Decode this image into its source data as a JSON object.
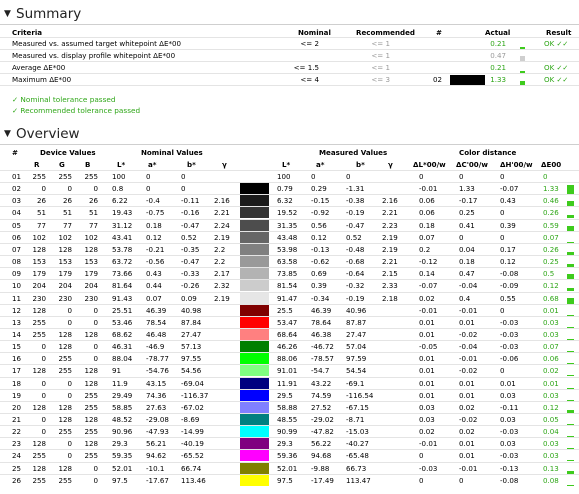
{
  "summary": {
    "title": "Summary",
    "headers": {
      "criteria": "Criteria",
      "nominal": "Nominal",
      "recommended": "Recommended",
      "hash": "#",
      "actual": "Actual",
      "result": "Result"
    },
    "rows": [
      {
        "criteria": "Measured vs. assumed target whitepoint ΔE*00",
        "nominal": "<= 2",
        "recommended": "<= 1",
        "num": "",
        "swatch": "",
        "actual": "0.21",
        "actual_fraction": 0.105,
        "result": "OK ✓✓"
      },
      {
        "criteria": "Measured vs. display profile whitepoint ΔE*00",
        "nominal": "",
        "recommended": "<= 1",
        "num": "",
        "swatch": "",
        "actual": "0.47",
        "actual_fraction": 0.47,
        "result": ""
      },
      {
        "criteria": "Average ΔE*00",
        "nominal": "<= 1.5",
        "recommended": "<= 1",
        "num": "",
        "swatch": "",
        "actual": "0.21",
        "actual_fraction": 0.14,
        "result": "OK ✓✓"
      },
      {
        "criteria": "Maximum ΔE*00",
        "nominal": "<= 4",
        "recommended": "<= 3",
        "num": "02",
        "swatch": "#000000",
        "actual": "1.33",
        "actual_fraction": 0.33,
        "result": "OK ✓✓"
      }
    ],
    "passed": [
      "✓ Nominal tolerance passed",
      "✓ Recommended tolerance passed"
    ]
  },
  "overview": {
    "title": "Overview",
    "group_headers": {
      "device": "Device Values",
      "nominal": "Nominal Values",
      "measured": "Measured Values",
      "distance": "Color distance"
    },
    "col_headers": {
      "num": "#",
      "R": "R",
      "G": "G",
      "B": "B",
      "L": "L*",
      "a": "a*",
      "b": "b*",
      "gamma": "γ",
      "mL": "L*",
      "ma": "a*",
      "mb": "b*",
      "mgamma": "γ",
      "dL": "ΔL*00/w",
      "dC": "ΔC'00/w",
      "dH": "ΔH'00/w",
      "dE": "ΔE00"
    },
    "rows": [
      {
        "n": "01",
        "R": "255",
        "G": "255",
        "B": "255",
        "L": "100",
        "a": "0",
        "b": "0",
        "g": "",
        "nom": "#ffffff",
        "meas": "#ffffff",
        "mL": "100",
        "ma": "0",
        "mb": "0",
        "mg": "",
        "dL": "0",
        "dC": "0",
        "dH": "0",
        "dE": "0",
        "dEv": 0
      },
      {
        "n": "02",
        "R": "0",
        "G": "0",
        "B": "0",
        "L": "0.8",
        "a": "0",
        "b": "0",
        "g": "",
        "nom": "#000000",
        "meas": "#000000",
        "mL": "0.79",
        "ma": "0.29",
        "mb": "-1.31",
        "mg": "",
        "dL": "-0.01",
        "dC": "1.33",
        "dH": "-0.07",
        "dE": "1.33",
        "dEv": 1.33
      },
      {
        "n": "03",
        "R": "26",
        "G": "26",
        "B": "26",
        "L": "6.22",
        "a": "-0.4",
        "b": "-0.11",
        "g": "2.16",
        "nom": "#1a1a1a",
        "meas": "#1a1a1a",
        "mL": "6.32",
        "ma": "-0.15",
        "mb": "-0.38",
        "mg": "2.16",
        "dL": "0.06",
        "dC": "-0.17",
        "dH": "0.43",
        "dE": "0.46",
        "dEv": 0.46
      },
      {
        "n": "04",
        "R": "51",
        "G": "51",
        "B": "51",
        "L": "19.43",
        "a": "-0.75",
        "b": "-0.16",
        "g": "2.21",
        "nom": "#333333",
        "meas": "#333333",
        "mL": "19.52",
        "ma": "-0.92",
        "mb": "-0.19",
        "mg": "2.21",
        "dL": "0.06",
        "dC": "0.25",
        "dH": "0",
        "dE": "0.26",
        "dEv": 0.26
      },
      {
        "n": "05",
        "R": "77",
        "G": "77",
        "B": "77",
        "L": "31.12",
        "a": "0.18",
        "b": "-0.47",
        "g": "2.24",
        "nom": "#4d4d4d",
        "meas": "#4d4d4d",
        "mL": "31.35",
        "ma": "0.56",
        "mb": "-0.47",
        "mg": "2.23",
        "dL": "0.18",
        "dC": "0.41",
        "dH": "0.39",
        "dE": "0.59",
        "dEv": 0.59
      },
      {
        "n": "06",
        "R": "102",
        "G": "102",
        "B": "102",
        "L": "43.41",
        "a": "0.12",
        "b": "0.52",
        "g": "2.19",
        "nom": "#666666",
        "meas": "#666666",
        "mL": "43.48",
        "ma": "0.12",
        "mb": "0.52",
        "mg": "2.19",
        "dL": "0.07",
        "dC": "0",
        "dH": "0",
        "dE": "0.07",
        "dEv": 0.07
      },
      {
        "n": "07",
        "R": "128",
        "G": "128",
        "B": "128",
        "L": "53.78",
        "a": "-0.21",
        "b": "-0.35",
        "g": "2.2",
        "nom": "#808080",
        "meas": "#808080",
        "mL": "53.98",
        "ma": "-0.13",
        "mb": "-0.48",
        "mg": "2.19",
        "dL": "0.2",
        "dC": "0.04",
        "dH": "0.17",
        "dE": "0.26",
        "dEv": 0.26
      },
      {
        "n": "08",
        "R": "153",
        "G": "153",
        "B": "153",
        "L": "63.72",
        "a": "-0.56",
        "b": "-0.47",
        "g": "2.2",
        "nom": "#999999",
        "meas": "#999999",
        "mL": "63.58",
        "ma": "-0.62",
        "mb": "-0.68",
        "mg": "2.21",
        "dL": "-0.12",
        "dC": "0.18",
        "dH": "0.12",
        "dE": "0.25",
        "dEv": 0.25
      },
      {
        "n": "09",
        "R": "179",
        "G": "179",
        "B": "179",
        "L": "73.66",
        "a": "0.43",
        "b": "-0.33",
        "g": "2.17",
        "nom": "#b3b3b3",
        "meas": "#b3b3b3",
        "mL": "73.85",
        "ma": "0.69",
        "mb": "-0.64",
        "mg": "2.15",
        "dL": "0.14",
        "dC": "0.47",
        "dH": "-0.08",
        "dE": "0.5",
        "dEv": 0.5
      },
      {
        "n": "10",
        "R": "204",
        "G": "204",
        "B": "204",
        "L": "81.64",
        "a": "0.44",
        "b": "-0.26",
        "g": "2.32",
        "nom": "#cccccc",
        "meas": "#cccccc",
        "mL": "81.54",
        "ma": "0.39",
        "mb": "-0.32",
        "mg": "2.33",
        "dL": "-0.07",
        "dC": "-0.04",
        "dH": "-0.09",
        "dE": "0.12",
        "dEv": 0.12
      },
      {
        "n": "11",
        "R": "230",
        "G": "230",
        "B": "230",
        "L": "91.43",
        "a": "0.07",
        "b": "0.09",
        "g": "2.19",
        "nom": "#e6e6e6",
        "meas": "#e6e6e6",
        "mL": "91.47",
        "ma": "-0.34",
        "mb": "-0.19",
        "mg": "2.18",
        "dL": "0.02",
        "dC": "0.4",
        "dH": "0.55",
        "dE": "0.68",
        "dEv": 0.68
      },
      {
        "n": "12",
        "R": "128",
        "G": "0",
        "B": "0",
        "L": "25.51",
        "a": "46.39",
        "b": "40.98",
        "g": "",
        "nom": "#800000",
        "meas": "#800000",
        "mL": "25.5",
        "ma": "46.39",
        "mb": "40.96",
        "mg": "",
        "dL": "-0.01",
        "dC": "-0.01",
        "dH": "0",
        "dE": "0.01",
        "dEv": 0.01
      },
      {
        "n": "13",
        "R": "255",
        "G": "0",
        "B": "0",
        "L": "53.46",
        "a": "78.54",
        "b": "87.84",
        "g": "",
        "nom": "#ff0000",
        "meas": "#ff0000",
        "mL": "53.47",
        "ma": "78.64",
        "mb": "87.87",
        "mg": "",
        "dL": "0.01",
        "dC": "0.01",
        "dH": "-0.03",
        "dE": "0.03",
        "dEv": 0.03
      },
      {
        "n": "14",
        "R": "255",
        "G": "128",
        "B": "128",
        "L": "68.62",
        "a": "46.48",
        "b": "27.47",
        "g": "",
        "nom": "#ff8080",
        "meas": "#ff8080",
        "mL": "68.64",
        "ma": "46.38",
        "mb": "27.47",
        "mg": "",
        "dL": "0.01",
        "dC": "-0.02",
        "dH": "-0.03",
        "dE": "0.03",
        "dEv": 0.03
      },
      {
        "n": "15",
        "R": "0",
        "G": "128",
        "B": "0",
        "L": "46.31",
        "a": "-46.9",
        "b": "57.13",
        "g": "",
        "nom": "#008000",
        "meas": "#008000",
        "mL": "46.26",
        "ma": "-46.72",
        "mb": "57.04",
        "mg": "",
        "dL": "-0.05",
        "dC": "-0.04",
        "dH": "-0.03",
        "dE": "0.07",
        "dEv": 0.07
      },
      {
        "n": "16",
        "R": "0",
        "G": "255",
        "B": "0",
        "L": "88.04",
        "a": "-78.77",
        "b": "97.55",
        "g": "",
        "nom": "#00ff00",
        "meas": "#00ff00",
        "mL": "88.06",
        "ma": "-78.57",
        "mb": "97.59",
        "mg": "",
        "dL": "0.01",
        "dC": "-0.01",
        "dH": "-0.06",
        "dE": "0.06",
        "dEv": 0.06
      },
      {
        "n": "17",
        "R": "128",
        "G": "255",
        "B": "128",
        "L": "91",
        "a": "-54.76",
        "b": "54.56",
        "g": "",
        "nom": "#80ff80",
        "meas": "#80ff80",
        "mL": "91.01",
        "ma": "-54.7",
        "mb": "54.54",
        "mg": "",
        "dL": "0.01",
        "dC": "-0.02",
        "dH": "0",
        "dE": "0.02",
        "dEv": 0.02
      },
      {
        "n": "18",
        "R": "0",
        "G": "0",
        "B": "128",
        "L": "11.9",
        "a": "43.15",
        "b": "-69.04",
        "g": "",
        "nom": "#000080",
        "meas": "#000080",
        "mL": "11.91",
        "ma": "43.22",
        "mb": "-69.1",
        "mg": "",
        "dL": "0.01",
        "dC": "0.01",
        "dH": "0.01",
        "dE": "0.01",
        "dEv": 0.01
      },
      {
        "n": "19",
        "R": "0",
        "G": "0",
        "B": "255",
        "L": "29.49",
        "a": "74.36",
        "b": "-116.37",
        "g": "",
        "nom": "#0000ff",
        "meas": "#0000ff",
        "mL": "29.5",
        "ma": "74.59",
        "mb": "-116.54",
        "mg": "",
        "dL": "0.01",
        "dC": "0.01",
        "dH": "0.03",
        "dE": "0.03",
        "dEv": 0.03
      },
      {
        "n": "20",
        "R": "128",
        "G": "128",
        "B": "255",
        "L": "58.85",
        "a": "27.63",
        "b": "-67.02",
        "g": "",
        "nom": "#8080ff",
        "meas": "#8080ff",
        "mL": "58.88",
        "ma": "27.52",
        "mb": "-67.15",
        "mg": "",
        "dL": "0.03",
        "dC": "0.02",
        "dH": "-0.11",
        "dE": "0.12",
        "dEv": 0.12
      },
      {
        "n": "21",
        "R": "0",
        "G": "128",
        "B": "128",
        "L": "48.52",
        "a": "-29.08",
        "b": "-8.69",
        "g": "",
        "nom": "#008080",
        "meas": "#008080",
        "mL": "48.55",
        "ma": "-29.02",
        "mb": "-8.71",
        "mg": "",
        "dL": "0.03",
        "dC": "-0.02",
        "dH": "0.03",
        "dE": "0.05",
        "dEv": 0.05
      },
      {
        "n": "22",
        "R": "0",
        "G": "255",
        "B": "255",
        "L": "90.96",
        "a": "-47.93",
        "b": "-14.99",
        "g": "",
        "nom": "#00ffff",
        "meas": "#00ffff",
        "mL": "90.99",
        "ma": "-47.82",
        "mb": "-15.03",
        "mg": "",
        "dL": "0.02",
        "dC": "0.02",
        "dH": "-0.03",
        "dE": "0.04",
        "dEv": 0.04
      },
      {
        "n": "23",
        "R": "128",
        "G": "0",
        "B": "128",
        "L": "29.3",
        "a": "56.21",
        "b": "-40.19",
        "g": "",
        "nom": "#800080",
        "meas": "#800080",
        "mL": "29.3",
        "ma": "56.22",
        "mb": "-40.27",
        "mg": "",
        "dL": "-0.01",
        "dC": "0.01",
        "dH": "0.03",
        "dE": "0.03",
        "dEv": 0.03
      },
      {
        "n": "24",
        "R": "255",
        "G": "0",
        "B": "255",
        "L": "59.35",
        "a": "94.62",
        "b": "-65.52",
        "g": "",
        "nom": "#ff00ff",
        "meas": "#ff00ff",
        "mL": "59.36",
        "ma": "94.68",
        "mb": "-65.48",
        "mg": "",
        "dL": "0",
        "dC": "0.01",
        "dH": "-0.03",
        "dE": "0.03",
        "dEv": 0.03
      },
      {
        "n": "25",
        "R": "128",
        "G": "128",
        "B": "0",
        "L": "52.01",
        "a": "-10.1",
        "b": "66.74",
        "g": "",
        "nom": "#808000",
        "meas": "#808000",
        "mL": "52.01",
        "ma": "-9.88",
        "mb": "66.73",
        "mg": "",
        "dL": "-0.03",
        "dC": "-0.01",
        "dH": "-0.13",
        "dE": "0.13",
        "dEv": 0.13
      },
      {
        "n": "26",
        "R": "255",
        "G": "255",
        "B": "0",
        "L": "97.5",
        "a": "-17.67",
        "b": "113.46",
        "g": "",
        "nom": "#ffff00",
        "meas": "#ffff00",
        "mL": "97.5",
        "ma": "-17.49",
        "mb": "113.47",
        "mg": "",
        "dL": "0",
        "dC": "0",
        "dH": "-0.08",
        "dE": "0.08",
        "dEv": 0.08
      }
    ]
  },
  "colors": {
    "green": "#2ea617",
    "bar": "#3ecb1d",
    "gray_bar": "#cfcfcf"
  }
}
